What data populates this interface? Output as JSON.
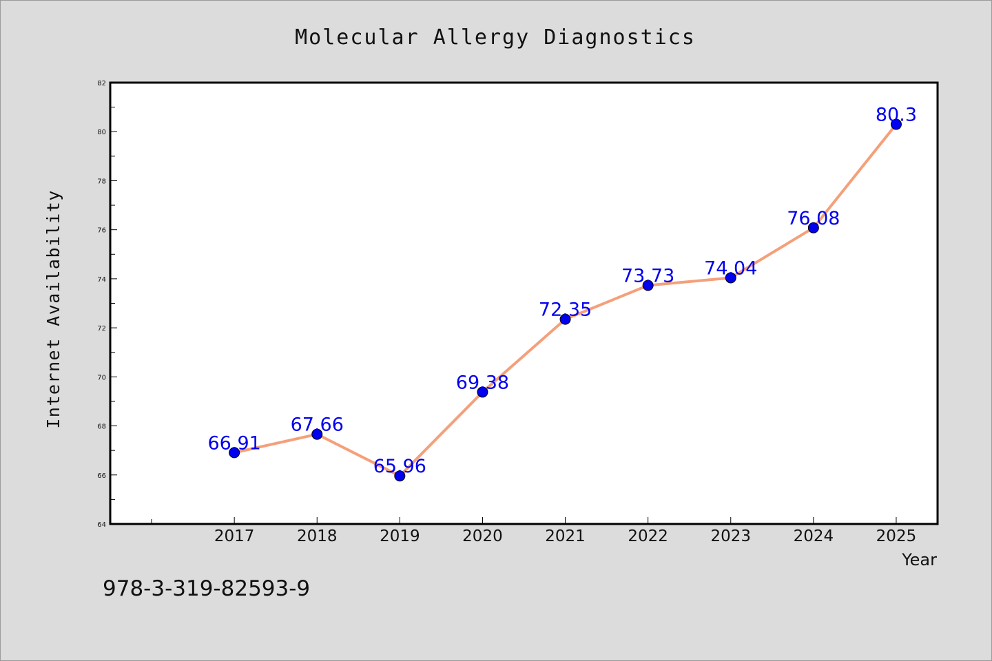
{
  "chart_data": {
    "type": "line",
    "title": "Molecular Allergy Diagnostics",
    "xlabel": "Year",
    "ylabel": "Internet Availability",
    "categories": [
      "2017",
      "2018",
      "2019",
      "2020",
      "2021",
      "2022",
      "2023",
      "2024",
      "2025"
    ],
    "series": [
      {
        "values": [
          66.91,
          67.66,
          65.96,
          69.38,
          72.35,
          73.73,
          74.04,
          76.08,
          80.3
        ],
        "labels": [
          "66.91",
          "67.66",
          "65.96",
          "69.38",
          "72.35",
          "73.73",
          "74.04",
          "76.08",
          "80.3"
        ],
        "line_color": "#f4a07a",
        "marker_color": "#0000ee",
        "label_color": "#0000ee"
      }
    ],
    "ylim": [
      64,
      82
    ],
    "yticks": [
      64,
      66,
      68,
      70,
      72,
      74,
      76,
      78,
      80,
      82
    ],
    "xlim": [
      2015.5,
      2025.5
    ],
    "grid": false,
    "legend": "none",
    "background": "#dcdcdc",
    "plot_background": "#ffffff"
  },
  "annotation": {
    "isbn": "978-3-319-82593-9"
  }
}
